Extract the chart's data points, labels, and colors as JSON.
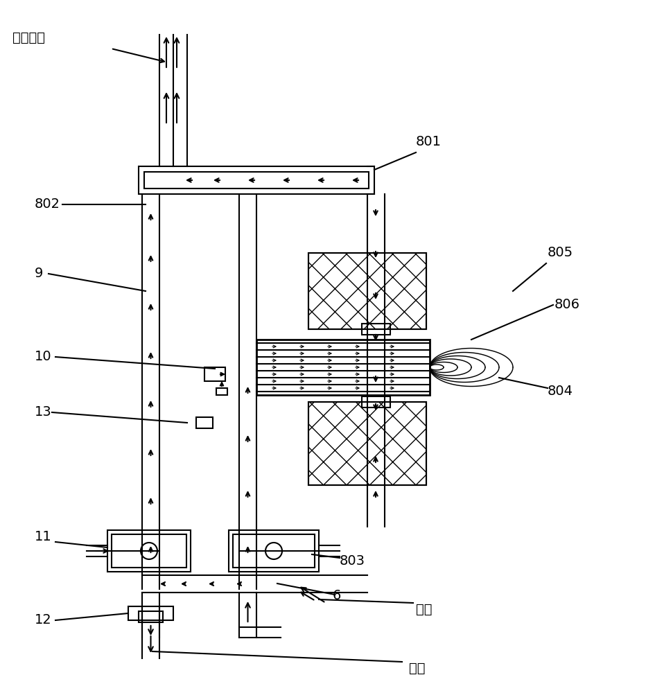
{
  "title": "",
  "bg_color": "#ffffff",
  "line_color": "#000000",
  "labels": {
    "low_temp_smoke": "低温烟气",
    "air": "空气",
    "fuel": "燃气",
    "n801": "801",
    "n802": "802",
    "n803": "803",
    "n804": "804",
    "n805": "805",
    "n806": "806",
    "n9": "9",
    "n10": "10",
    "n11": "11",
    "n12": "12",
    "n13": "13",
    "n6": "6"
  },
  "figsize": [
    9.32,
    10.0
  ],
  "dpi": 100
}
